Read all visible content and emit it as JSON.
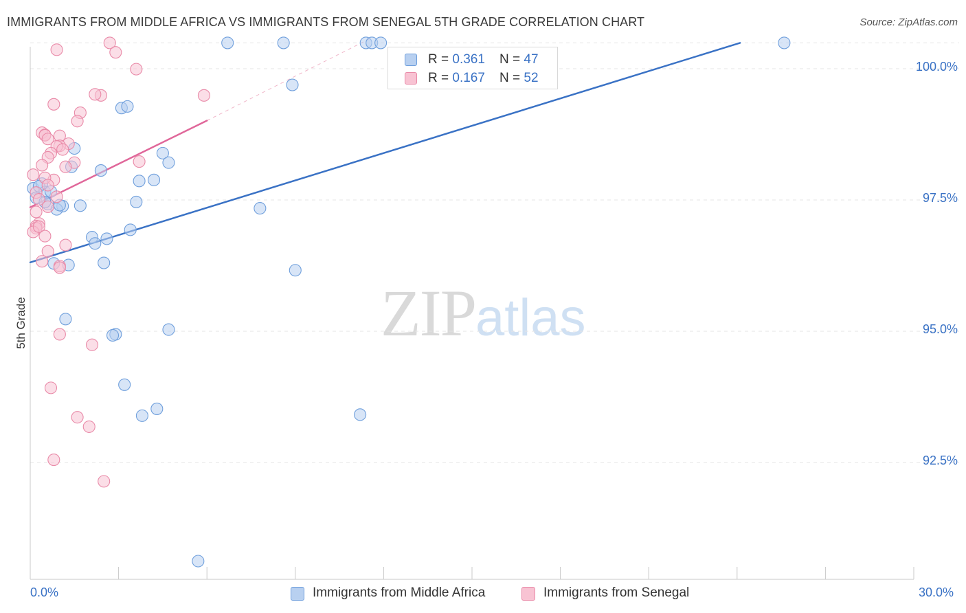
{
  "header": {
    "title": "IMMIGRANTS FROM MIDDLE AFRICA VS IMMIGRANTS FROM SENEGAL 5TH GRADE CORRELATION CHART",
    "source": "Source: ZipAtlas.com"
  },
  "watermark": {
    "zip": "ZIP",
    "atlas": "atlas"
  },
  "legend": {
    "rows": [
      {
        "r_label": "R = ",
        "r_value": "0.361",
        "n_label": "N = ",
        "n_value": "47",
        "fill": "#b8d0f0",
        "stroke": "#6f9fdc"
      },
      {
        "r_label": "R = ",
        "r_value": "0.167",
        "n_label": "N = ",
        "n_value": "52",
        "fill": "#f8c3d3",
        "stroke": "#e98aa8"
      }
    ]
  },
  "bottom_legend": {
    "items": [
      {
        "label": "Immigrants from Middle Africa",
        "fill": "#b8d0f0",
        "stroke": "#6f9fdc"
      },
      {
        "label": "Immigrants from Senegal",
        "fill": "#f8c3d3",
        "stroke": "#e98aa8"
      }
    ]
  },
  "axis_labels": {
    "x_min": "0.0%",
    "x_max": "30.0%",
    "y_ticks": [
      "100.0%",
      "97.5%",
      "95.0%",
      "92.5%"
    ]
  },
  "chart_data": {
    "type": "scatter",
    "title": "IMMIGRANTS FROM MIDDLE AFRICA VS IMMIGRANTS FROM SENEGAL 5TH GRADE CORRELATION CHART",
    "xlabel": "",
    "ylabel": "5th Grade",
    "xlim": [
      0,
      30
    ],
    "ylim": [
      90.1,
      100.4
    ],
    "y_ticks": [
      100.0,
      97.5,
      95.0,
      92.5
    ],
    "grid": true,
    "legend_position": "top-center",
    "series": [
      {
        "name": "Immigrants from Middle Africa",
        "color": "#3a72c5",
        "fill": "#b8d0f0",
        "stroke": "#6f9fdc",
        "trend": {
          "x": [
            0.0,
            24.1
          ],
          "y": [
            96.05,
            100.23
          ]
        },
        "points": [
          [
            6.7,
            100.23
          ],
          [
            8.6,
            100.23
          ],
          [
            11.4,
            100.23
          ],
          [
            11.6,
            100.23
          ],
          [
            11.9,
            100.23
          ],
          [
            25.6,
            100.23
          ],
          [
            8.9,
            99.43
          ],
          [
            3.1,
            98.99
          ],
          [
            3.3,
            99.02
          ],
          [
            1.5,
            98.22
          ],
          [
            4.5,
            98.13
          ],
          [
            4.7,
            97.95
          ],
          [
            1.4,
            97.87
          ],
          [
            2.4,
            97.8
          ],
          [
            3.7,
            97.6
          ],
          [
            4.2,
            97.62
          ],
          [
            0.1,
            97.46
          ],
          [
            0.4,
            97.55
          ],
          [
            0.5,
            97.39
          ],
          [
            0.7,
            97.4
          ],
          [
            0.2,
            97.28
          ],
          [
            0.6,
            97.16
          ],
          [
            1.1,
            97.12
          ],
          [
            1.7,
            97.13
          ],
          [
            0.9,
            97.06
          ],
          [
            3.6,
            97.2
          ],
          [
            7.8,
            97.08
          ],
          [
            3.4,
            96.67
          ],
          [
            2.1,
            96.53
          ],
          [
            2.6,
            96.5
          ],
          [
            2.2,
            96.41
          ],
          [
            1.3,
            96.0
          ],
          [
            2.5,
            96.04
          ],
          [
            0.8,
            96.03
          ],
          [
            9.0,
            95.9
          ],
          [
            1.2,
            94.97
          ],
          [
            2.9,
            94.68
          ],
          [
            2.8,
            94.66
          ],
          [
            4.7,
            94.77
          ],
          [
            3.2,
            93.72
          ],
          [
            3.8,
            93.13
          ],
          [
            4.3,
            93.26
          ],
          [
            11.2,
            93.15
          ],
          [
            5.7,
            90.36
          ],
          [
            0.3,
            97.5
          ],
          [
            1.0,
            97.14
          ],
          [
            0.5,
            97.2
          ]
        ]
      },
      {
        "name": "Immigrants from Senegal",
        "color": "#e0679a",
        "fill": "#f8c3d3",
        "stroke": "#e98aa8",
        "trend": {
          "x": [
            0.0,
            6.0
          ],
          "y": [
            97.1,
            98.75
          ],
          "extended": {
            "x": [
              6.0,
              11.6
            ],
            "y": [
              98.75,
              100.33
            ]
          }
        },
        "points": [
          [
            2.7,
            100.23
          ],
          [
            2.9,
            100.05
          ],
          [
            0.9,
            100.1
          ],
          [
            3.6,
            99.73
          ],
          [
            5.9,
            99.23
          ],
          [
            2.4,
            99.23
          ],
          [
            2.2,
            99.25
          ],
          [
            0.8,
            99.06
          ],
          [
            1.7,
            98.9
          ],
          [
            1.6,
            98.74
          ],
          [
            0.4,
            98.52
          ],
          [
            0.5,
            98.48
          ],
          [
            0.5,
            98.47
          ],
          [
            1.0,
            98.46
          ],
          [
            0.6,
            98.4
          ],
          [
            1.3,
            98.31
          ],
          [
            1.0,
            98.27
          ],
          [
            0.9,
            98.26
          ],
          [
            0.7,
            98.13
          ],
          [
            0.6,
            98.05
          ],
          [
            1.5,
            97.95
          ],
          [
            3.7,
            97.97
          ],
          [
            1.2,
            97.87
          ],
          [
            0.1,
            97.72
          ],
          [
            0.8,
            97.62
          ],
          [
            0.5,
            97.66
          ],
          [
            0.6,
            97.52
          ],
          [
            0.2,
            97.38
          ],
          [
            0.3,
            97.25
          ],
          [
            0.6,
            97.11
          ],
          [
            0.2,
            97.01
          ],
          [
            0.3,
            96.79
          ],
          [
            0.2,
            96.74
          ],
          [
            0.2,
            96.7
          ],
          [
            0.1,
            96.63
          ],
          [
            1.2,
            96.38
          ],
          [
            0.6,
            96.26
          ],
          [
            0.4,
            96.07
          ],
          [
            1.0,
            95.98
          ],
          [
            1.0,
            95.95
          ],
          [
            1.0,
            94.68
          ],
          [
            2.1,
            94.48
          ],
          [
            0.7,
            93.66
          ],
          [
            1.6,
            93.1
          ],
          [
            2.0,
            92.92
          ],
          [
            0.8,
            92.29
          ],
          [
            2.5,
            91.88
          ],
          [
            0.3,
            96.73
          ],
          [
            0.5,
            96.55
          ],
          [
            0.9,
            97.3
          ],
          [
            1.1,
            98.2
          ],
          [
            0.4,
            97.9
          ]
        ]
      }
    ]
  }
}
